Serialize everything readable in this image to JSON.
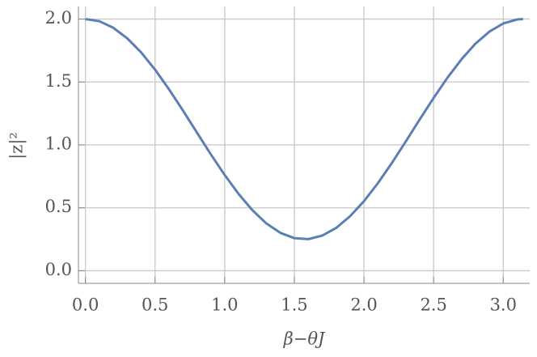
{
  "chart_data": {
    "type": "line",
    "xlabel": "β−θJ",
    "ylabel": "|z|²",
    "x": [
      0,
      0.1,
      0.2,
      0.3,
      0.4,
      0.5,
      0.6,
      0.7,
      0.8,
      0.9,
      1.0,
      1.1,
      1.2,
      1.3,
      1.4,
      1.5,
      1.6,
      1.7,
      1.8,
      1.9,
      2.0,
      2.1,
      2.2,
      2.3,
      2.4,
      2.5,
      2.6,
      2.7,
      2.8,
      2.9,
      3.0,
      3.1,
      3.1416
    ],
    "series": [
      {
        "color": "#5b7fb5",
        "values": [
          2.0,
          1.983,
          1.931,
          1.847,
          1.735,
          1.598,
          1.442,
          1.274,
          1.099,
          0.926,
          0.761,
          0.61,
          0.48,
          0.375,
          0.301,
          0.259,
          0.2515,
          0.279,
          0.34,
          0.433,
          0.553,
          0.696,
          0.856,
          1.027,
          1.202,
          1.373,
          1.535,
          1.68,
          1.804,
          1.9,
          1.965,
          1.997,
          2.0
        ]
      }
    ],
    "xlim": [
      -0.05,
      3.19
    ],
    "ylim": [
      -0.1,
      2.1
    ],
    "xticks": [
      {
        "value": 0,
        "label": "0.0"
      },
      0.5,
      {
        "value": 1,
        "label": "1.0"
      },
      1.5,
      {
        "value": 2,
        "label": "2.0"
      },
      2.5,
      {
        "value": 3,
        "label": "3.0"
      }
    ],
    "yticks": [
      {
        "value": 0,
        "label": "0.0"
      },
      0.5,
      {
        "value": 1,
        "label": "1.0"
      },
      1.5,
      {
        "value": 2,
        "label": "2.0"
      }
    ],
    "grid": true
  }
}
